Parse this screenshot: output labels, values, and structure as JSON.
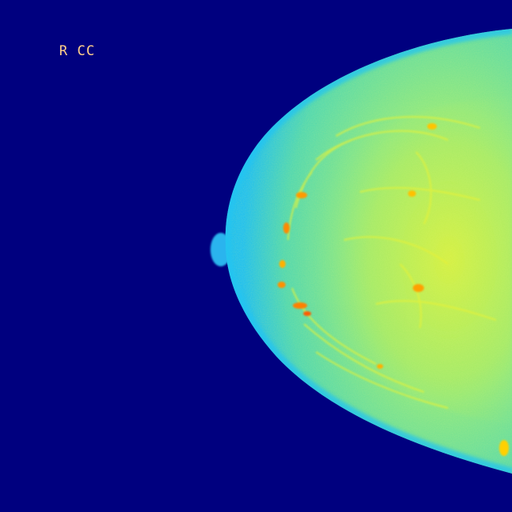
{
  "image": {
    "view_label": "R CC",
    "colormap": "jet",
    "colors": {
      "background": "#00007f",
      "skin_edge": "#1fc8f0",
      "tissue_base": "#5fe0a0",
      "glandular": "#d8f040",
      "dense_spots": "#ff9a00",
      "label": "#ffcf8a"
    }
  }
}
